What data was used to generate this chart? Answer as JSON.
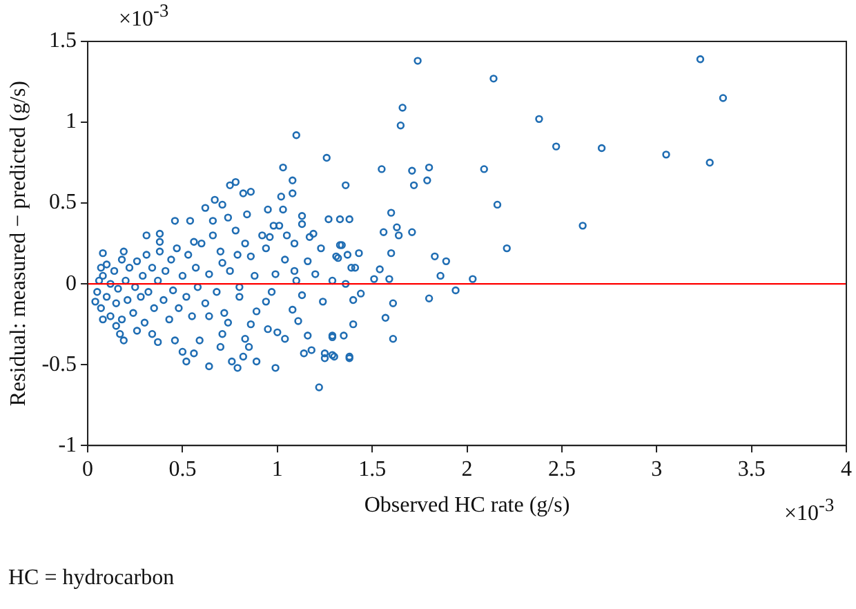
{
  "chart_data": {
    "type": "scatter",
    "xlabel": "Observed HC rate (g/s)",
    "ylabel": "Residual: measured − predicted (g/s)",
    "annotations": [
      "×10$^{-3}$",
      "×10$^{-3}$",
      "HC = hydrocarbon"
    ],
    "color": "#1f6db3",
    "marker": "circle",
    "grid": false,
    "legend": false,
    "xlim": [
      0,
      4
    ],
    "xticks": [
      0,
      0.5,
      1,
      1.5,
      2,
      2.5,
      3,
      3.5,
      4
    ],
    "ylim": [
      -1,
      1.5
    ],
    "yticks": [
      -1,
      -0.5,
      0,
      0.5,
      1,
      1.5
    ],
    "ref_lines": [
      {
        "axis": "y",
        "value": 0,
        "color": "#ff0000"
      }
    ],
    "x": [
      1.74,
      2.14,
      1.66,
      1.65,
      3.23,
      3.35,
      2.38,
      2.47,
      2.71,
      3.05,
      3.28,
      1.1,
      1.55,
      1.71,
      1.8,
      1.79,
      1.72,
      1.36,
      1.26,
      2.09,
      2.16,
      2.61,
      2.21,
      2.03,
      1.94,
      1.8,
      1.89,
      1.83,
      1.86,
      1.6,
      1.63,
      1.56,
      1.71,
      1.64,
      1.6,
      1.54,
      1.59,
      1.61,
      1.57,
      1.61,
      1.51,
      1.43,
      1.4,
      1.4,
      1.44,
      1.35,
      1.29,
      1.38,
      1.33,
      1.27,
      1.33,
      1.32,
      1.37,
      1.41,
      1.36,
      1.29,
      1.38,
      1.29,
      1.03,
      1.08,
      0.75,
      0.78,
      0.82,
      0.86,
      1.08,
      1.02,
      0.67,
      0.71,
      0.62,
      0.84,
      0.95,
      1.03,
      1.13,
      1.13,
      0.46,
      0.31,
      0.38,
      0.54,
      0.66,
      0.74,
      0.98,
      1.01,
      1.17,
      1.19,
      0.96,
      1.09,
      0.08,
      0.19,
      0.38,
      0.56,
      1.34,
      1.31,
      1.23,
      1.16,
      1.04,
      0.94,
      0.86,
      0.79,
      0.71,
      1.39,
      1.2,
      1.09,
      0.99,
      0.07,
      1.38,
      1.3,
      1.25,
      1.25,
      1.22,
      1.18,
      1.14,
      1.16,
      1.29,
      1.24,
      1.13,
      1.11,
      1.08,
      1.0,
      1.04,
      0.99,
      0.95,
      0.89,
      0.82,
      0.85,
      0.83,
      0.79,
      0.76,
      0.7,
      0.64,
      0.52,
      0.56,
      0.5,
      0.46,
      0.59,
      0.71,
      0.86,
      0.37,
      0.34,
      0.26,
      0.19,
      0.17,
      0.15,
      0.08,
      0.04,
      0.74,
      0.64,
      0.94,
      0.8,
      0.89,
      0.05,
      0.06,
      0.07,
      0.08,
      0.1,
      0.1,
      0.12,
      0.12,
      0.14,
      0.15,
      0.16,
      0.18,
      0.18,
      0.2,
      0.21,
      0.22,
      0.24,
      0.25,
      0.26,
      0.28,
      0.29,
      0.3,
      0.31,
      0.32,
      0.34,
      0.35,
      0.37,
      0.38,
      0.4,
      0.41,
      0.43,
      0.44,
      0.45,
      0.47,
      0.48,
      0.5,
      0.52,
      0.53,
      0.55,
      0.57,
      0.58,
      0.6,
      0.62,
      0.64,
      0.66,
      0.68,
      0.7,
      0.72,
      0.75,
      0.78,
      0.8,
      0.83,
      0.88,
      0.92,
      0.97,
      1.05,
      1.1
    ],
    "values": [
      1.38,
      1.27,
      1.09,
      0.98,
      1.39,
      1.15,
      1.02,
      0.85,
      0.84,
      0.8,
      0.75,
      0.92,
      0.71,
      0.7,
      0.72,
      0.64,
      0.61,
      0.61,
      0.78,
      0.71,
      0.49,
      0.36,
      0.22,
      0.03,
      -0.04,
      -0.09,
      0.14,
      0.17,
      0.05,
      0.44,
      0.35,
      0.32,
      0.32,
      0.3,
      0.19,
      0.09,
      0.03,
      -0.12,
      -0.21,
      -0.34,
      0.03,
      0.19,
      -0.1,
      -0.25,
      -0.06,
      -0.32,
      -0.33,
      0.4,
      0.4,
      0.4,
      0.24,
      0.16,
      0.18,
      0.1,
      0.0,
      0.02,
      -0.45,
      -0.44,
      0.72,
      0.64,
      0.61,
      0.63,
      0.56,
      0.57,
      0.56,
      0.54,
      0.52,
      0.49,
      0.47,
      0.43,
      0.46,
      0.46,
      0.42,
      0.37,
      0.39,
      0.3,
      0.31,
      0.39,
      0.39,
      0.41,
      0.36,
      0.36,
      0.29,
      0.31,
      0.29,
      0.25,
      0.19,
      0.2,
      0.26,
      0.26,
      0.24,
      0.17,
      0.22,
      0.14,
      0.15,
      0.22,
      0.17,
      0.18,
      0.13,
      0.1,
      0.06,
      0.08,
      0.06,
      0.1,
      -0.46,
      -0.45,
      -0.43,
      -0.46,
      -0.64,
      -0.41,
      -0.43,
      -0.32,
      -0.32,
      -0.11,
      -0.07,
      -0.23,
      -0.16,
      -0.3,
      -0.34,
      -0.52,
      -0.28,
      -0.48,
      -0.45,
      -0.39,
      -0.34,
      -0.52,
      -0.48,
      -0.39,
      -0.51,
      -0.48,
      -0.43,
      -0.42,
      -0.35,
      -0.35,
      -0.31,
      -0.25,
      -0.36,
      -0.31,
      -0.29,
      -0.35,
      -0.31,
      -0.26,
      -0.22,
      -0.11,
      -0.24,
      -0.2,
      -0.11,
      -0.08,
      -0.17,
      -0.05,
      0.02,
      -0.15,
      0.05,
      -0.08,
      0.12,
      -0.2,
      0.0,
      0.08,
      -0.12,
      -0.03,
      0.15,
      -0.22,
      0.02,
      -0.1,
      0.1,
      -0.18,
      -0.02,
      0.14,
      -0.08,
      0.05,
      -0.24,
      0.18,
      -0.05,
      0.1,
      -0.15,
      0.02,
      0.2,
      -0.1,
      0.08,
      -0.22,
      0.15,
      -0.04,
      0.22,
      -0.15,
      0.05,
      -0.08,
      0.18,
      -0.2,
      0.1,
      -0.02,
      0.25,
      -0.12,
      0.06,
      0.3,
      -0.05,
      0.2,
      -0.18,
      0.08,
      0.33,
      -0.02,
      0.25,
      0.05,
      0.3,
      -0.05,
      0.3,
      0.02
    ]
  }
}
